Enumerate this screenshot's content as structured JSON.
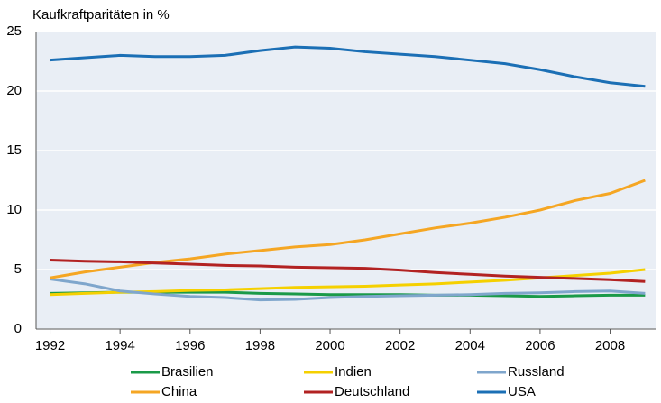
{
  "chart_data": {
    "type": "line",
    "title": "Kaufkraftparitäten in %",
    "x": [
      1992,
      1993,
      1994,
      1995,
      1996,
      1997,
      1998,
      1999,
      2000,
      2001,
      2002,
      2003,
      2004,
      2005,
      2006,
      2007,
      2008,
      2009
    ],
    "series": [
      {
        "name": "Brasilien",
        "color": "#1a9a48",
        "values": [
          3.0,
          3.05,
          3.1,
          3.1,
          3.1,
          3.1,
          3.0,
          2.95,
          2.9,
          2.9,
          2.9,
          2.85,
          2.85,
          2.8,
          2.75,
          2.8,
          2.85,
          2.85
        ]
      },
      {
        "name": "Indien",
        "color": "#f5d000",
        "values": [
          2.9,
          3.0,
          3.1,
          3.15,
          3.25,
          3.3,
          3.4,
          3.5,
          3.55,
          3.6,
          3.7,
          3.8,
          3.95,
          4.1,
          4.3,
          4.5,
          4.7,
          5.0
        ]
      },
      {
        "name": "Russland",
        "color": "#7fa6cc",
        "values": [
          4.2,
          3.8,
          3.2,
          2.95,
          2.75,
          2.65,
          2.45,
          2.5,
          2.65,
          2.75,
          2.8,
          2.85,
          2.9,
          3.0,
          3.05,
          3.15,
          3.2,
          3.0
        ]
      },
      {
        "name": "China",
        "color": "#f5a623",
        "values": [
          4.3,
          4.8,
          5.2,
          5.6,
          5.9,
          6.3,
          6.6,
          6.9,
          7.1,
          7.5,
          8.0,
          8.5,
          8.9,
          9.4,
          10.0,
          10.8,
          11.4,
          12.5
        ]
      },
      {
        "name": "Deutschland",
        "color": "#b22222",
        "values": [
          5.8,
          5.7,
          5.65,
          5.55,
          5.45,
          5.35,
          5.3,
          5.2,
          5.15,
          5.1,
          4.95,
          4.75,
          4.6,
          4.45,
          4.35,
          4.25,
          4.15,
          4.0
        ]
      },
      {
        "name": "USA",
        "color": "#1b6fb5",
        "values": [
          22.6,
          22.8,
          23.0,
          22.9,
          22.9,
          23.0,
          23.4,
          23.7,
          23.6,
          23.3,
          23.1,
          22.9,
          22.6,
          22.3,
          21.8,
          21.2,
          20.7,
          20.4
        ]
      }
    ],
    "xlim": [
      1991.6,
      2009.3
    ],
    "xticks": [
      1992,
      1994,
      1996,
      1998,
      2000,
      2002,
      2004,
      2006,
      2008
    ],
    "ylim": [
      0,
      25
    ],
    "yticks": [
      0,
      5,
      10,
      15,
      20,
      25
    ],
    "grid": true,
    "legend": "bottom"
  }
}
